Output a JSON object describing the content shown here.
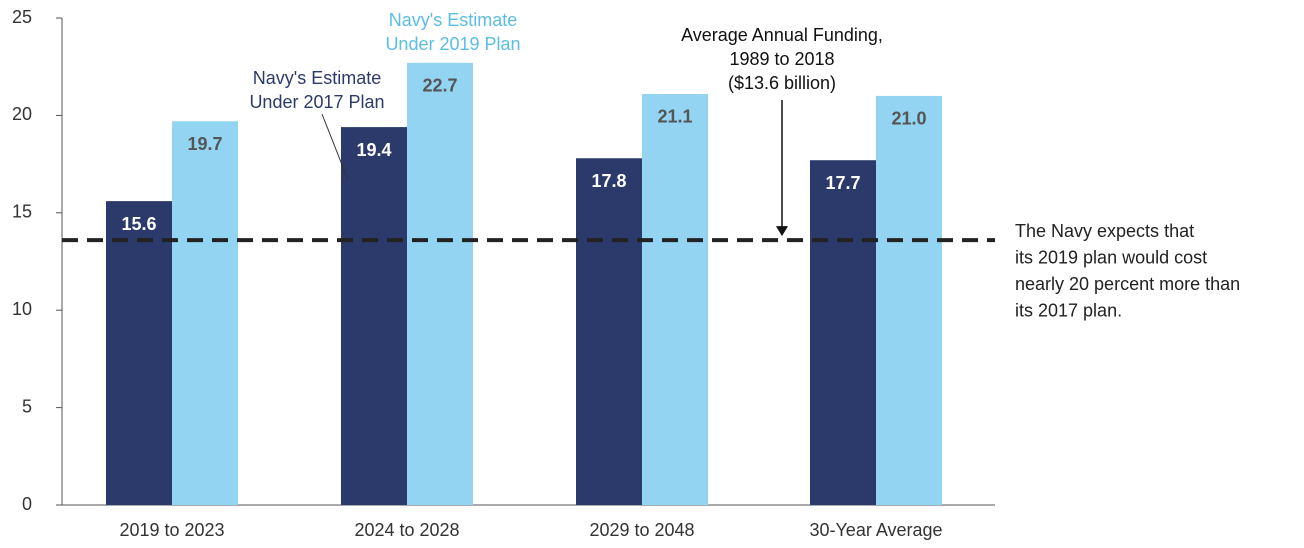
{
  "chart_data": {
    "type": "bar",
    "categories": [
      "2019 to 2023",
      "2024 to 2028",
      "2029 to 2048",
      "30-Year Average"
    ],
    "series": [
      {
        "name": "Navy's Estimate Under 2017 Plan",
        "color": "#2b3a6b",
        "values": [
          15.6,
          19.4,
          17.8,
          17.7
        ],
        "value_labels": [
          "15.6",
          "19.4",
          "17.8",
          "17.7"
        ]
      },
      {
        "name": "Navy's Estimate Under 2019 Plan",
        "color": "#93d4f2",
        "values": [
          19.7,
          22.7,
          21.1,
          21.0
        ],
        "value_labels": [
          "19.7",
          "22.7",
          "21.1",
          "21.0"
        ]
      }
    ],
    "ylim": [
      0,
      25
    ],
    "yticks": [
      0,
      5,
      10,
      15,
      20,
      25
    ],
    "grid": false,
    "reference_line": {
      "value": 13.6,
      "label_lines": [
        "Average Annual Funding,",
        "1989 to 2018",
        "($13.6 billion)"
      ]
    },
    "note_lines": [
      "The Navy expects that",
      "its 2019 plan would cost",
      "nearly 20 percent more than",
      "its 2017 plan."
    ]
  }
}
